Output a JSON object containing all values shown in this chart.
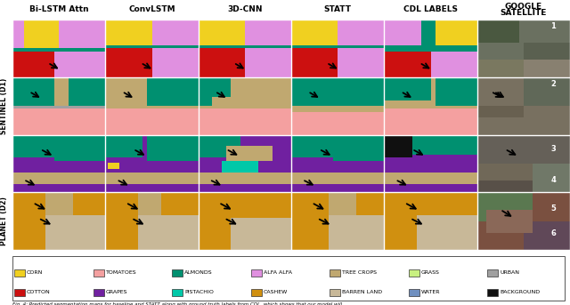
{
  "col_headers": [
    "Bi-LSTM Attn",
    "ConvLSTM",
    "3D-CNN",
    "STATT",
    "CDL LABELS",
    "GOOGLE\nSATELLITE"
  ],
  "sentinel_label": "SENTINEL (D1)",
  "planet_label": "PLANET (D2)",
  "legend_items": [
    {
      "label": "CORN",
      "color": "#F0D020"
    },
    {
      "label": "TOMATOES",
      "color": "#F4A0A0"
    },
    {
      "label": "ALMONDS",
      "color": "#009070"
    },
    {
      "label": "ALFA ALFA",
      "color": "#E090E0"
    },
    {
      "label": "TREE CROPS",
      "color": "#C0A870"
    },
    {
      "label": "GRASS",
      "color": "#C8F080"
    },
    {
      "label": "URBAN",
      "color": "#A0A0A0"
    },
    {
      "label": "COTTON",
      "color": "#CC1010"
    },
    {
      "label": "GRAPES",
      "color": "#7020A0"
    },
    {
      "label": "PISTACHIO",
      "color": "#00C8A8"
    },
    {
      "label": "CASHEW",
      "color": "#D09010"
    },
    {
      "label": "BARREN LAND",
      "color": "#C8B898"
    },
    {
      "label": "WATER",
      "color": "#7090C0"
    },
    {
      "label": "BACKGROUND",
      "color": "#101010"
    }
  ],
  "caption": "Fig. 4: Predicted segmentation maps for baseline and STATT along with ground truth labels from CDL, which shows that our model will",
  "background_color": "#FFFFFF",
  "num_cols": 6,
  "num_rows": 4
}
